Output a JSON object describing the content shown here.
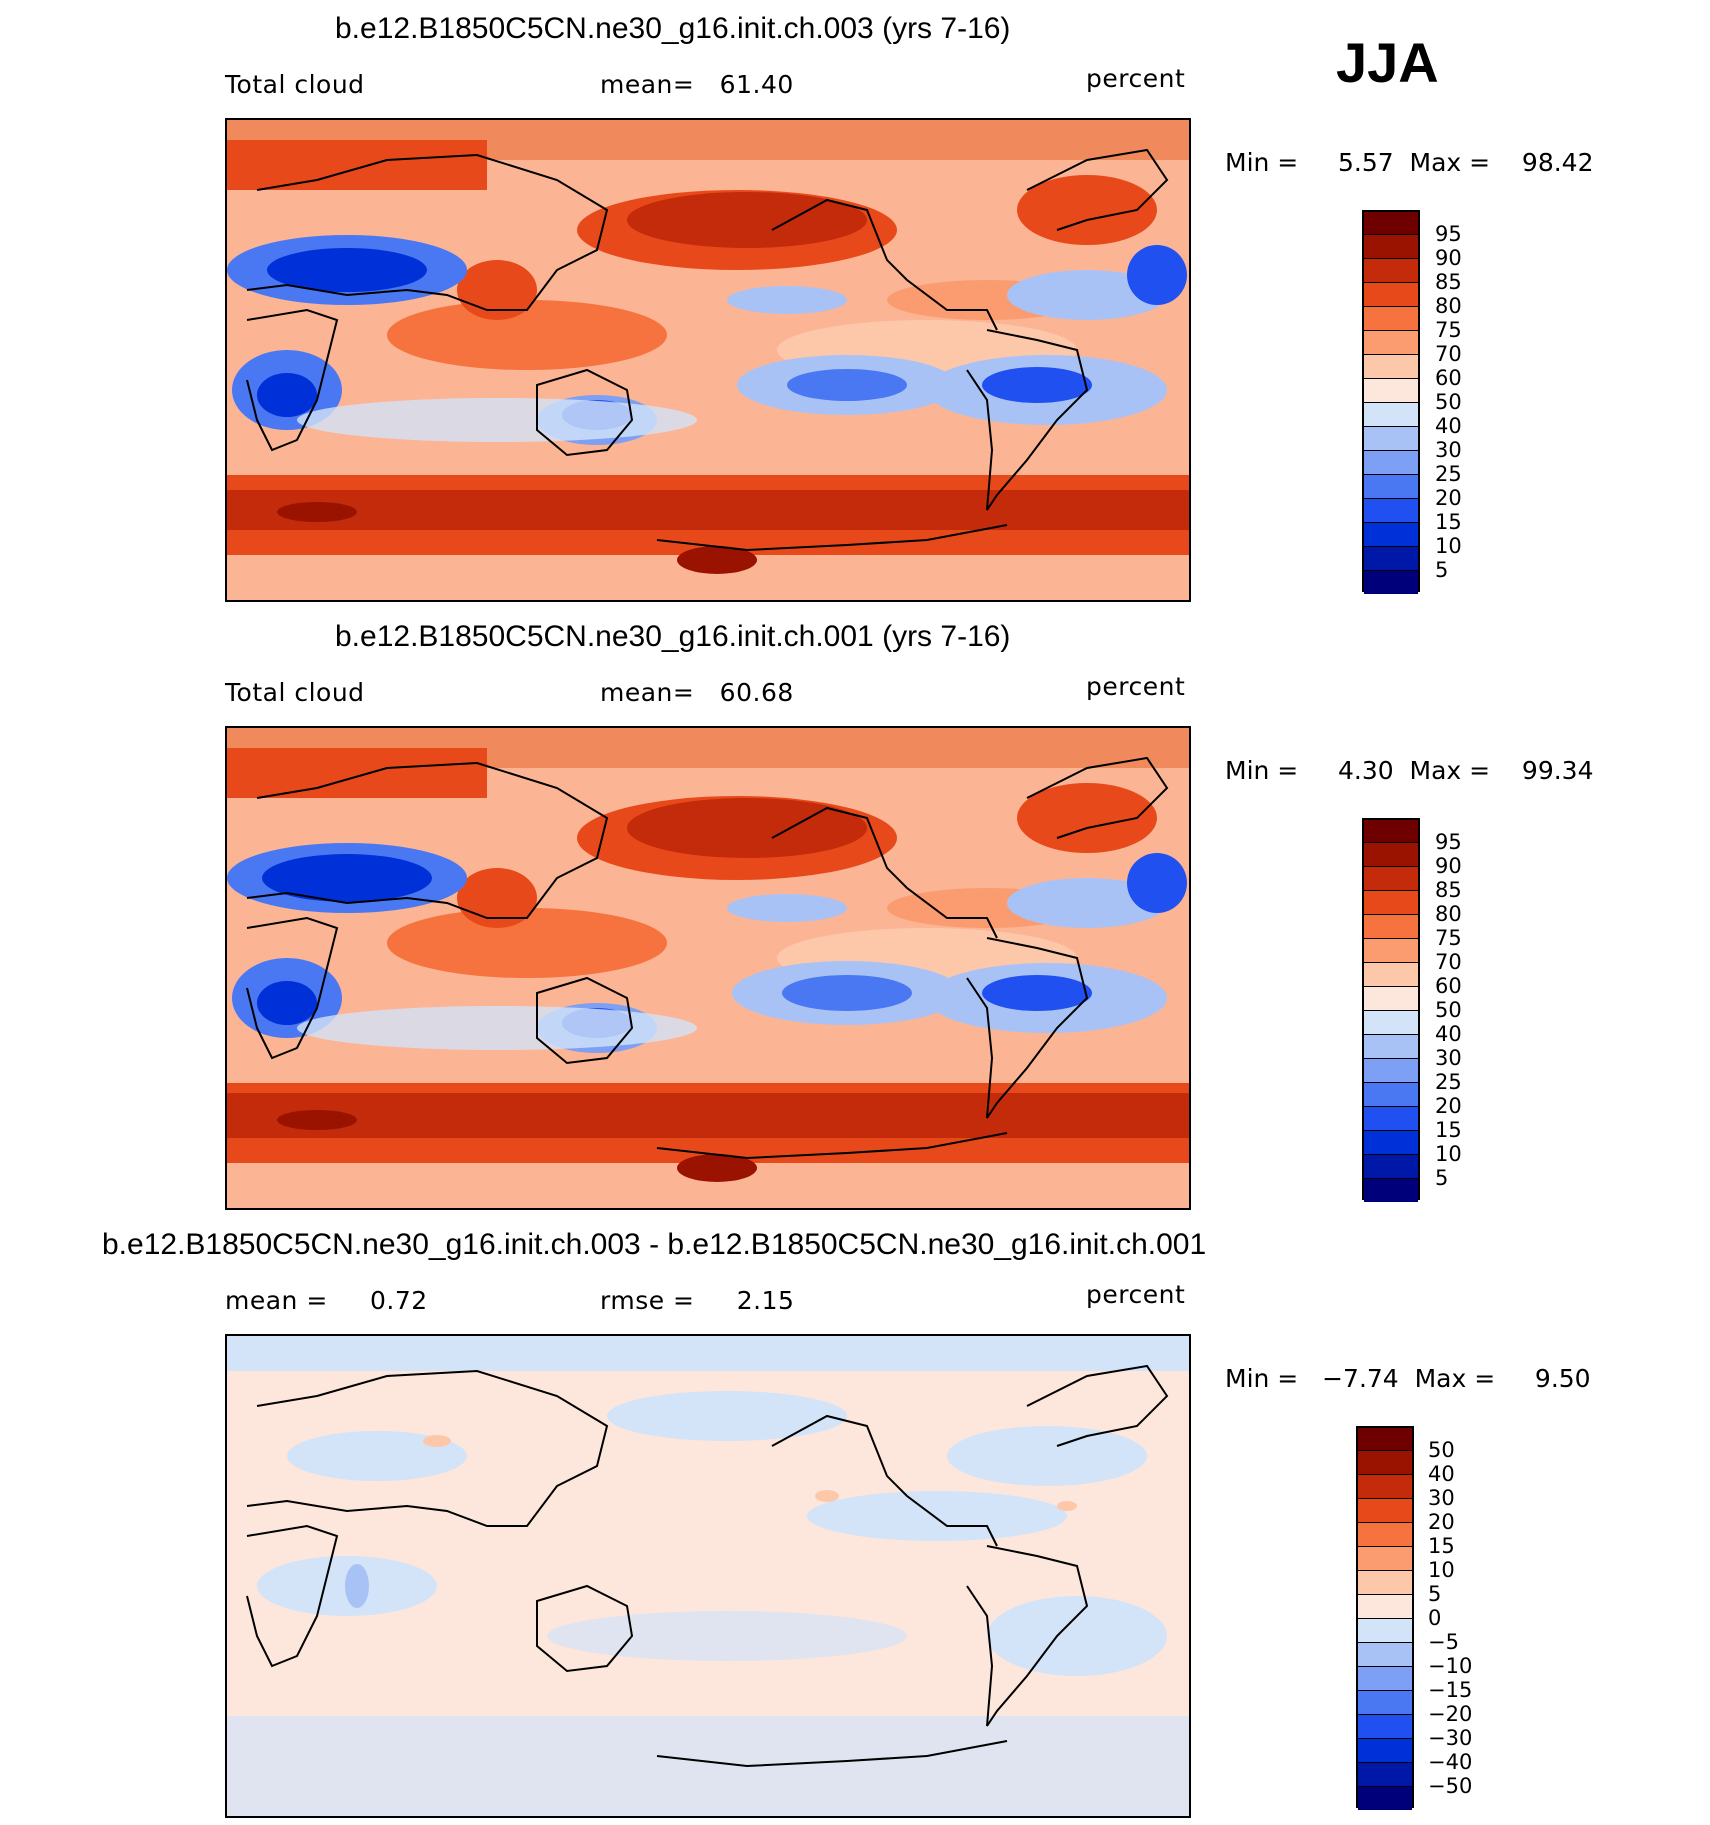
{
  "season": "JJA",
  "colors": {
    "cloud_scale": [
      "#00007a",
      "#0018a8",
      "#0030d8",
      "#2050f0",
      "#4a78f2",
      "#7ea0f4",
      "#a9c2f6",
      "#d3e3f8",
      "#fde7dc",
      "#fdc8aa",
      "#fb9c70",
      "#f6723e",
      "#e8491a",
      "#c42b0a",
      "#9a1300",
      "#6e0000"
    ],
    "diff_scale": [
      "#00007a",
      "#0018a8",
      "#0030d8",
      "#2050f0",
      "#4a78f2",
      "#7ea0f4",
      "#a9c2f6",
      "#d3e3f8",
      "#fde7dc",
      "#fdc8aa",
      "#fb9c70",
      "#f6723e",
      "#e8491a",
      "#c42b0a",
      "#9a1300",
      "#6e0000"
    ],
    "ocean_high": "#d9441c",
    "ocean_mid": "#f7a884",
    "ocean_low": "#5a86ee"
  },
  "panels": [
    {
      "title": "b.e12.B1850C5CN.ne30_g16.init.ch.003 (yrs 7-16)",
      "left_label": "Total cloud",
      "middle_label": "mean=   61.40",
      "units": "percent",
      "minmax": "Min =     5.57  Max =    98.42",
      "type": "field"
    },
    {
      "title": "b.e12.B1850C5CN.ne30_g16.init.ch.001 (yrs 7-16)",
      "left_label": "Total cloud",
      "middle_label": "mean=   60.68",
      "units": "percent",
      "minmax": "Min =     4.30  Max =    99.34",
      "type": "field"
    },
    {
      "title": "b.e12.B1850C5CN.ne30_g16.init.ch.003 - b.e12.B1850C5CN.ne30_g16.init.ch.001",
      "left_label": "mean =     0.72",
      "middle_label": "rmse =     2.15",
      "units": "percent",
      "minmax": "Min =   −7.74  Max =     9.50",
      "type": "diff"
    }
  ],
  "cloud_levels": [
    "95",
    "90",
    "85",
    "80",
    "75",
    "70",
    "60",
    "50",
    "40",
    "30",
    "25",
    "20",
    "15",
    "10",
    "5"
  ],
  "diff_levels": [
    "50",
    "40",
    "30",
    "20",
    "15",
    "10",
    "5",
    "0",
    "−5",
    "−10",
    "−15",
    "−20",
    "−30",
    "−40",
    "−50"
  ]
}
